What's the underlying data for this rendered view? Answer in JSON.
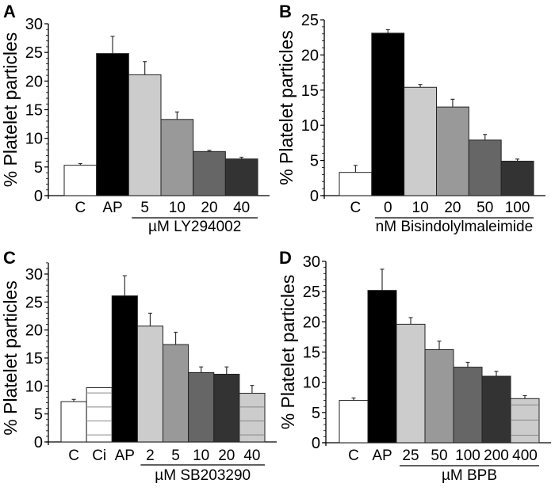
{
  "chart_data": [
    {
      "type": "bar",
      "panel_label": "A",
      "ylabel": "% Platelet particles",
      "xlabel": "µM LY294002",
      "ylim": [
        0,
        30
      ],
      "yticks": [
        0,
        5,
        10,
        15,
        20,
        25,
        30
      ],
      "categories": [
        "C",
        "AP",
        "5",
        "10",
        "20",
        "40"
      ],
      "values": [
        5.3,
        24.8,
        21.1,
        13.3,
        7.7,
        6.4
      ],
      "errors": [
        0.3,
        3.0,
        2.3,
        1.3,
        0.2,
        0.3
      ],
      "fills": [
        "#ffffff",
        "#000000",
        "#cccccc",
        "#999999",
        "#666666",
        "#333333"
      ],
      "hatched": [
        false,
        false,
        false,
        false,
        false,
        false
      ],
      "bracket_from": 2
    },
    {
      "type": "bar",
      "panel_label": "B",
      "ylabel": "% Platelet particles",
      "xlabel": "nM Bisindolylmaleimide",
      "ylim": [
        0,
        25
      ],
      "yticks": [
        0,
        5,
        10,
        15,
        20,
        25
      ],
      "categories": [
        "C",
        "0",
        "10",
        "20",
        "50",
        "100"
      ],
      "values": [
        3.3,
        23.1,
        15.4,
        12.6,
        7.9,
        4.9
      ],
      "errors": [
        1.0,
        0.5,
        0.4,
        1.1,
        0.8,
        0.3
      ],
      "fills": [
        "#ffffff",
        "#000000",
        "#cccccc",
        "#999999",
        "#666666",
        "#333333"
      ],
      "hatched": [
        false,
        false,
        false,
        false,
        false,
        false
      ],
      "bracket_from": 1
    },
    {
      "type": "bar",
      "panel_label": "C",
      "ylabel": "% Platelet particles",
      "xlabel": "µM SB203290",
      "ylim": [
        0,
        32
      ],
      "yticks": [
        0,
        5,
        10,
        15,
        20,
        25,
        30
      ],
      "categories": [
        "C",
        "Ci",
        "AP",
        "2",
        "5",
        "10",
        "20",
        "40"
      ],
      "values": [
        7.2,
        9.7,
        26.1,
        20.7,
        17.4,
        12.4,
        12.1,
        8.7
      ],
      "errors": [
        0.4,
        0,
        3.6,
        2.3,
        2.2,
        1.0,
        1.3,
        1.4
      ],
      "fills": [
        "#ffffff",
        "#ffffff",
        "#000000",
        "#cccccc",
        "#999999",
        "#666666",
        "#333333",
        "#cccccc"
      ],
      "hatched": [
        false,
        true,
        false,
        false,
        false,
        false,
        false,
        true
      ],
      "bracket_from": 3
    },
    {
      "type": "bar",
      "panel_label": "D",
      "ylabel": "% Platelet particles",
      "xlabel": "µM BPB",
      "ylim": [
        0,
        30
      ],
      "yticks": [
        0,
        5,
        10,
        15,
        20,
        25,
        30
      ],
      "categories": [
        "C",
        "AP",
        "25",
        "50",
        "100",
        "200",
        "400"
      ],
      "values": [
        7.0,
        25.2,
        19.6,
        15.4,
        12.5,
        11.0,
        7.3
      ],
      "errors": [
        0.4,
        3.5,
        1.1,
        1.4,
        0.8,
        0.8,
        0.5
      ],
      "fills": [
        "#ffffff",
        "#000000",
        "#cccccc",
        "#999999",
        "#666666",
        "#333333",
        "#cccccc"
      ],
      "hatched": [
        false,
        false,
        false,
        false,
        false,
        false,
        true
      ],
      "bracket_from": 2
    }
  ]
}
